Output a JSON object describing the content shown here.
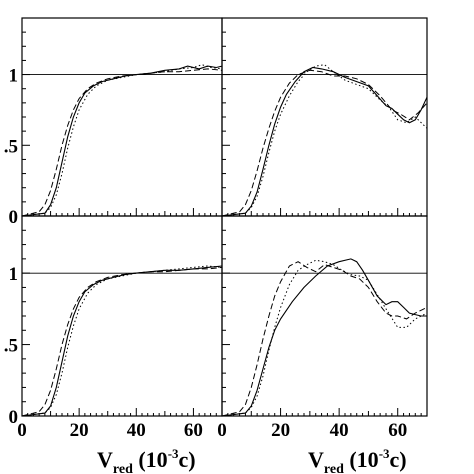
{
  "figure": {
    "xlabel": {
      "main": "V",
      "sub": "red",
      "rest_open": " (10",
      "sup": "-3",
      "rest_close": "c)"
    }
  },
  "chart_data": [
    {
      "type": "line",
      "panel": "top-left",
      "xlim": [
        0,
        70
      ],
      "ylim": [
        0,
        1.4
      ],
      "x_ticks": [
        "0",
        "20",
        "40",
        "60"
      ],
      "y_ticks": [
        ".5",
        "1"
      ],
      "y_zero_tick": "0",
      "reference_line": 1.0,
      "series": [
        {
          "style": "solid",
          "x": [
            0,
            8,
            10,
            12,
            14,
            16,
            18,
            20,
            22,
            25,
            28,
            32,
            36,
            40,
            45,
            50,
            55,
            58,
            62,
            65,
            68,
            70
          ],
          "y": [
            0,
            0.02,
            0.08,
            0.2,
            0.38,
            0.56,
            0.7,
            0.8,
            0.87,
            0.92,
            0.95,
            0.97,
            0.99,
            1.0,
            1.01,
            1.03,
            1.04,
            1.06,
            1.04,
            1.06,
            1.05,
            1.06
          ]
        },
        {
          "style": "dashed",
          "x": [
            0,
            6,
            8,
            10,
            12,
            14,
            16,
            18,
            20,
            23,
            26,
            30,
            35,
            40,
            45,
            50,
            55,
            60,
            65,
            70
          ],
          "y": [
            0,
            0.03,
            0.08,
            0.18,
            0.33,
            0.5,
            0.64,
            0.75,
            0.83,
            0.9,
            0.94,
            0.97,
            0.99,
            1.0,
            1.01,
            1.02,
            1.02,
            1.03,
            1.04,
            1.03
          ]
        },
        {
          "style": "dotted",
          "x": [
            0,
            8,
            10,
            12,
            14,
            16,
            18,
            20,
            23,
            26,
            30,
            35,
            40,
            45,
            50,
            55,
            60,
            63,
            66,
            70
          ],
          "y": [
            0,
            0.02,
            0.06,
            0.15,
            0.3,
            0.48,
            0.63,
            0.75,
            0.86,
            0.92,
            0.96,
            0.98,
            1.0,
            1.01,
            1.02,
            1.04,
            1.05,
            1.07,
            1.05,
            1.04
          ]
        }
      ]
    },
    {
      "type": "line",
      "panel": "top-right",
      "xlim": [
        0,
        70
      ],
      "ylim": [
        0,
        1.4
      ],
      "x_ticks": [
        "0",
        "20",
        "40",
        "60"
      ],
      "reference_line": 1.0,
      "series": [
        {
          "style": "solid",
          "x": [
            0,
            8,
            10,
            12,
            14,
            16,
            18,
            20,
            22,
            25,
            28,
            31,
            34,
            38,
            42,
            46,
            50,
            53,
            56,
            58,
            60,
            62,
            64,
            66,
            68,
            70
          ],
          "y": [
            0,
            0.02,
            0.07,
            0.17,
            0.33,
            0.5,
            0.65,
            0.77,
            0.86,
            0.95,
            1.02,
            1.05,
            1.04,
            1.02,
            0.98,
            0.95,
            0.92,
            0.85,
            0.78,
            0.76,
            0.72,
            0.68,
            0.66,
            0.68,
            0.75,
            0.84
          ]
        },
        {
          "style": "dashed",
          "x": [
            0,
            6,
            8,
            10,
            12,
            14,
            16,
            18,
            20,
            23,
            26,
            30,
            34,
            38,
            42,
            46,
            50,
            54,
            58,
            61,
            64,
            67,
            70
          ],
          "y": [
            0,
            0.03,
            0.08,
            0.18,
            0.32,
            0.48,
            0.62,
            0.74,
            0.84,
            0.94,
            1.0,
            1.03,
            1.02,
            0.99,
            0.99,
            0.97,
            0.93,
            0.85,
            0.75,
            0.72,
            0.68,
            0.73,
            0.8
          ]
        },
        {
          "style": "dotted",
          "x": [
            0,
            8,
            10,
            12,
            14,
            16,
            18,
            20,
            23,
            26,
            29,
            32,
            35,
            38,
            42,
            46,
            50,
            54,
            57,
            60,
            63,
            66,
            70
          ],
          "y": [
            0,
            0.02,
            0.06,
            0.14,
            0.28,
            0.45,
            0.6,
            0.72,
            0.85,
            0.95,
            1.02,
            1.06,
            1.07,
            1.02,
            0.96,
            0.93,
            0.9,
            0.82,
            0.77,
            0.68,
            0.66,
            0.7,
            0.62
          ]
        }
      ]
    },
    {
      "type": "line",
      "panel": "bottom-left",
      "xlim": [
        0,
        70
      ],
      "ylim": [
        0,
        1.4
      ],
      "x_ticks": [
        "0",
        "20",
        "40",
        "60"
      ],
      "y_ticks": [
        ".5",
        "1"
      ],
      "y_zero_tick": "0",
      "reference_line": 1.0,
      "series": [
        {
          "style": "solid",
          "x": [
            0,
            8,
            10,
            12,
            14,
            16,
            18,
            20,
            22,
            25,
            28,
            32,
            36,
            40,
            45,
            50,
            55,
            60,
            65,
            70
          ],
          "y": [
            0,
            0.02,
            0.07,
            0.2,
            0.38,
            0.56,
            0.7,
            0.8,
            0.87,
            0.92,
            0.95,
            0.97,
            0.99,
            1.0,
            1.01,
            1.02,
            1.02,
            1.03,
            1.04,
            1.05
          ]
        },
        {
          "style": "dashed",
          "x": [
            0,
            6,
            8,
            10,
            12,
            14,
            16,
            18,
            20,
            23,
            26,
            30,
            35,
            40,
            45,
            50,
            55,
            60,
            65,
            70
          ],
          "y": [
            0,
            0.03,
            0.08,
            0.18,
            0.33,
            0.5,
            0.64,
            0.75,
            0.83,
            0.9,
            0.94,
            0.97,
            0.99,
            1.0,
            1.01,
            1.01,
            1.02,
            1.03,
            1.03,
            1.04
          ]
        },
        {
          "style": "dotted",
          "x": [
            0,
            8,
            10,
            12,
            14,
            16,
            18,
            20,
            23,
            26,
            30,
            35,
            40,
            45,
            50,
            55,
            60,
            65,
            70
          ],
          "y": [
            0,
            0.02,
            0.06,
            0.15,
            0.3,
            0.48,
            0.63,
            0.75,
            0.86,
            0.92,
            0.96,
            0.98,
            1.0,
            1.01,
            1.02,
            1.03,
            1.04,
            1.05,
            1.04
          ]
        }
      ]
    },
    {
      "type": "line",
      "panel": "bottom-right",
      "xlim": [
        0,
        70
      ],
      "ylim": [
        0,
        1.4
      ],
      "x_ticks": [
        "0",
        "20",
        "40",
        "60"
      ],
      "reference_line": 1.0,
      "series": [
        {
          "style": "solid",
          "x": [
            0,
            8,
            10,
            12,
            14,
            16,
            18,
            20,
            24,
            28,
            32,
            36,
            40,
            44,
            46,
            48,
            50,
            53,
            56,
            58,
            60,
            62,
            64,
            66,
            68,
            70
          ],
          "y": [
            0,
            0.02,
            0.07,
            0.18,
            0.33,
            0.48,
            0.6,
            0.68,
            0.8,
            0.9,
            0.98,
            1.05,
            1.08,
            1.1,
            1.08,
            1.02,
            0.95,
            0.84,
            0.78,
            0.8,
            0.8,
            0.76,
            0.72,
            0.71,
            0.7,
            0.7
          ]
        },
        {
          "style": "dashed",
          "x": [
            0,
            6,
            8,
            10,
            12,
            14,
            16,
            18,
            20,
            23,
            26,
            29,
            32,
            35,
            38,
            41,
            44,
            47,
            50,
            53,
            56,
            58,
            60,
            63,
            66,
            70
          ],
          "y": [
            0,
            0.03,
            0.08,
            0.2,
            0.36,
            0.54,
            0.7,
            0.84,
            0.94,
            1.05,
            1.08,
            1.04,
            1.01,
            1.06,
            1.04,
            1.02,
            0.98,
            0.96,
            0.9,
            0.8,
            0.72,
            0.7,
            0.7,
            0.68,
            0.72,
            0.76
          ]
        },
        {
          "style": "dotted",
          "x": [
            0,
            8,
            10,
            12,
            14,
            16,
            18,
            20,
            23,
            26,
            29,
            32,
            35,
            38,
            41,
            44,
            47,
            50,
            53,
            56,
            60,
            63,
            66,
            70
          ],
          "y": [
            0,
            0.02,
            0.06,
            0.14,
            0.28,
            0.46,
            0.62,
            0.76,
            0.92,
            1.02,
            1.06,
            1.09,
            1.08,
            1.06,
            1.02,
            0.99,
            0.98,
            0.95,
            0.85,
            0.75,
            0.62,
            0.62,
            0.68,
            0.72
          ]
        }
      ]
    }
  ]
}
